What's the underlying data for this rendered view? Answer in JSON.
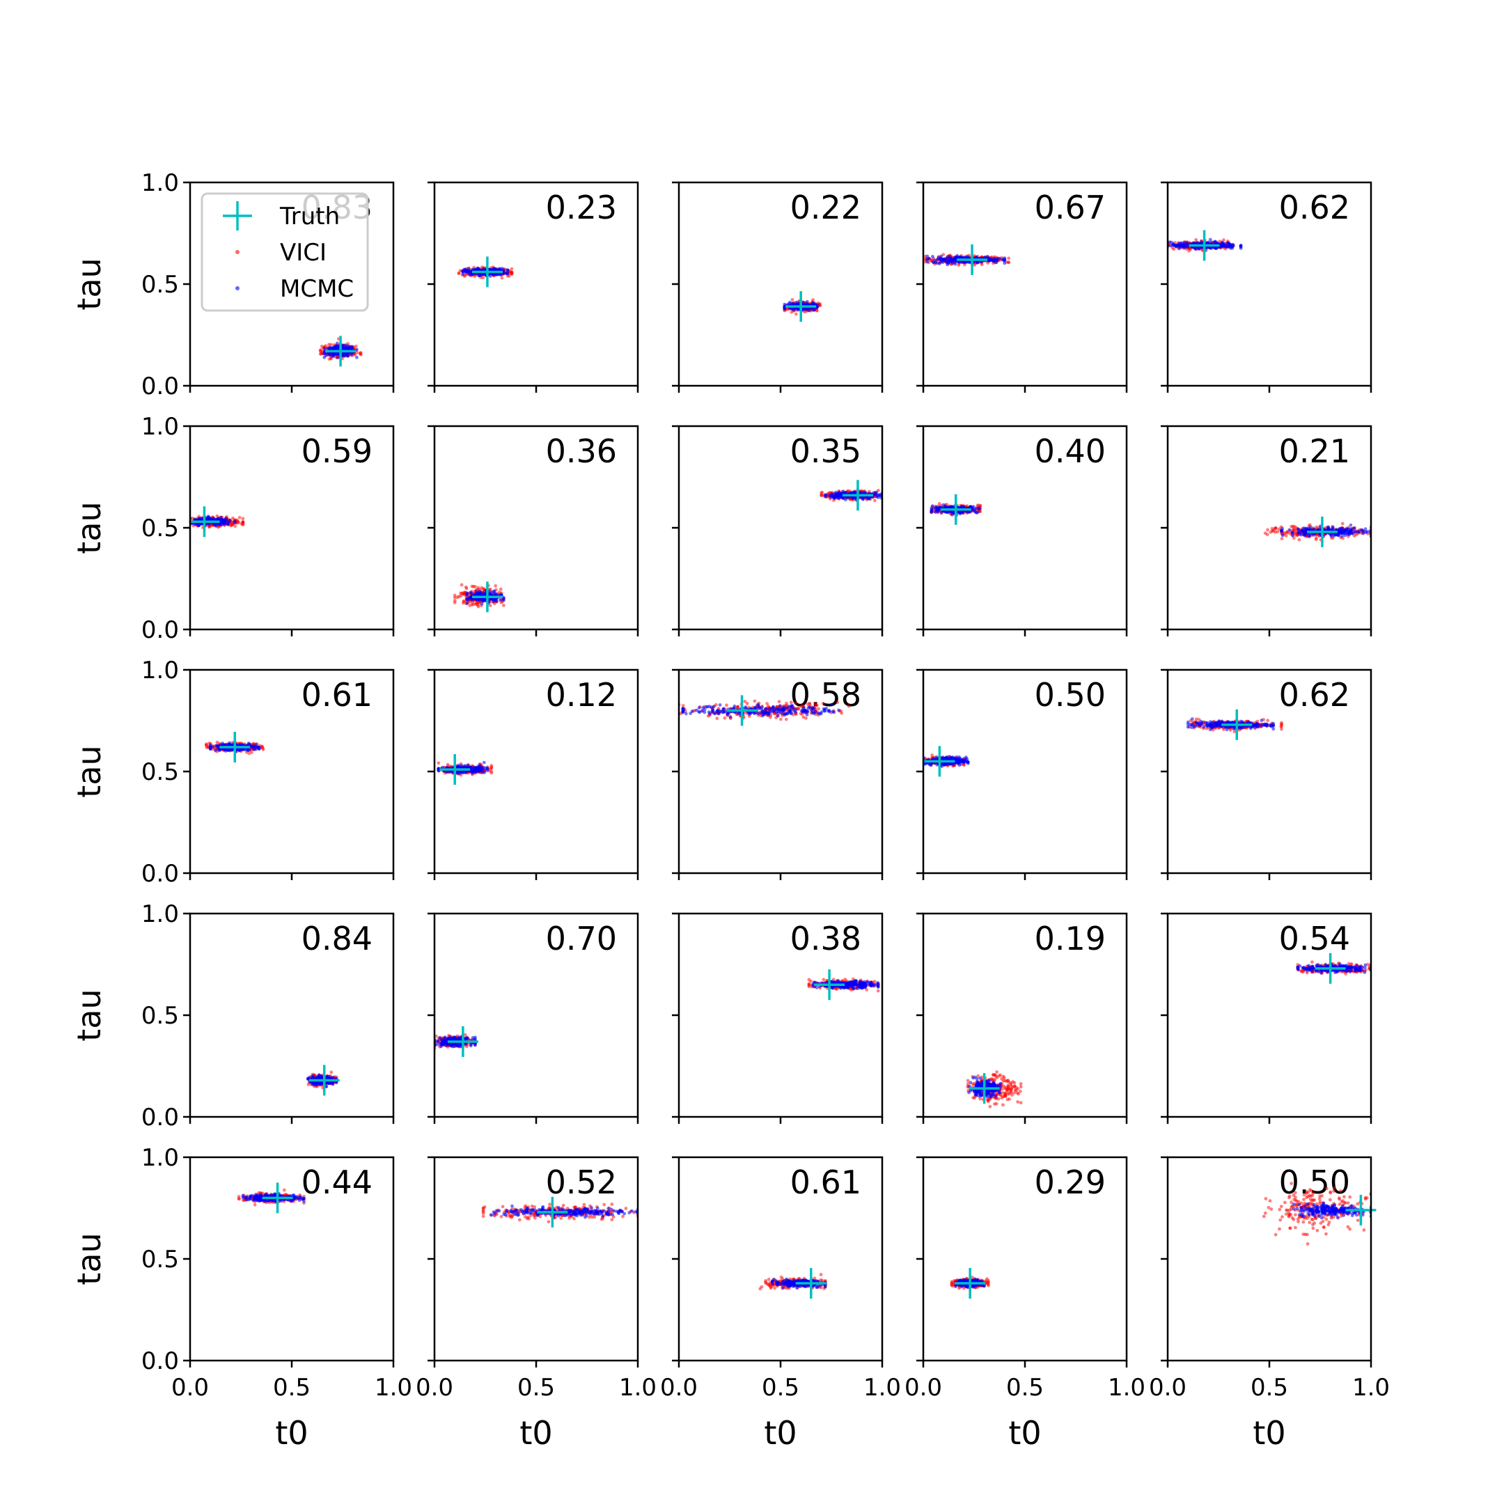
{
  "chart_data": {
    "type": "scatter",
    "layout": "5x5 grid of subplots, shared axes",
    "xlabel": "t0",
    "ylabel": "tau",
    "xlim": [
      0,
      1
    ],
    "ylim": [
      0,
      1
    ],
    "xticks": [
      "0.0",
      "0.5",
      "1.0"
    ],
    "yticks": [
      "0.0",
      "0.5",
      "1.0"
    ],
    "grid": false,
    "legend": {
      "placement": "upper-left of first subplot",
      "entries": [
        {
          "label": "Truth",
          "marker": "plus",
          "color": "#00bfbf"
        },
        {
          "label": "VICI",
          "marker": "dot",
          "color": "#ff0000"
        },
        {
          "label": "MCMC",
          "marker": "dot",
          "color": "#0000ff"
        }
      ]
    },
    "colors": {
      "truth": "#00bfbf",
      "vici": "#ff0000",
      "mcmc": "#0000ff"
    },
    "panels": [
      {
        "annotation": "0.83",
        "truth": [
          0.74,
          0.17
        ],
        "mcmc_t0": [
          0.66,
          0.82
        ],
        "mcmc_tau_spread": 0.012,
        "vici_t0": [
          0.64,
          0.84
        ],
        "vici_tau_spread": 0.016
      },
      {
        "annotation": "0.23",
        "truth": [
          0.26,
          0.56
        ],
        "mcmc_t0": [
          0.14,
          0.36
        ],
        "mcmc_tau_spread": 0.008,
        "vici_t0": [
          0.12,
          0.38
        ],
        "vici_tau_spread": 0.01
      },
      {
        "annotation": "0.22",
        "truth": [
          0.6,
          0.39
        ],
        "mcmc_t0": [
          0.52,
          0.68
        ],
        "mcmc_tau_spread": 0.008,
        "vici_t0": [
          0.52,
          0.7
        ],
        "vici_tau_spread": 0.01
      },
      {
        "annotation": "0.67",
        "truth": [
          0.24,
          0.62
        ],
        "mcmc_t0": [
          0.02,
          0.4
        ],
        "mcmc_tau_spread": 0.008,
        "vici_t0": [
          0.01,
          0.42
        ],
        "vici_tau_spread": 0.01
      },
      {
        "annotation": "0.62",
        "truth": [
          0.18,
          0.69
        ],
        "mcmc_t0": [
          0.0,
          0.36
        ],
        "mcmc_tau_spread": 0.008,
        "vici_t0": [
          0.0,
          0.32
        ],
        "vici_tau_spread": 0.01
      },
      {
        "annotation": "0.59",
        "truth": [
          0.07,
          0.53
        ],
        "mcmc_t0": [
          0.0,
          0.22
        ],
        "mcmc_tau_spread": 0.008,
        "vici_t0": [
          0.0,
          0.26
        ],
        "vici_tau_spread": 0.012
      },
      {
        "annotation": "0.36",
        "truth": [
          0.26,
          0.16
        ],
        "mcmc_t0": [
          0.16,
          0.34
        ],
        "mcmc_tau_spread": 0.012,
        "vici_t0": [
          0.1,
          0.34
        ],
        "vici_tau_spread": 0.02
      },
      {
        "annotation": "0.35",
        "truth": [
          0.88,
          0.66
        ],
        "mcmc_t0": [
          0.72,
          1.0
        ],
        "mcmc_tau_spread": 0.008,
        "vici_t0": [
          0.7,
          1.0
        ],
        "vici_tau_spread": 0.01
      },
      {
        "annotation": "0.40",
        "truth": [
          0.16,
          0.59
        ],
        "mcmc_t0": [
          0.04,
          0.28
        ],
        "mcmc_tau_spread": 0.008,
        "vici_t0": [
          0.04,
          0.28
        ],
        "vici_tau_spread": 0.01
      },
      {
        "annotation": "0.21",
        "truth": [
          0.76,
          0.48
        ],
        "mcmc_t0": [
          0.56,
          1.0
        ],
        "mcmc_tau_spread": 0.01,
        "vici_t0": [
          0.48,
          1.0
        ],
        "vici_tau_spread": 0.014
      },
      {
        "annotation": "0.61",
        "truth": [
          0.22,
          0.62
        ],
        "mcmc_t0": [
          0.1,
          0.34
        ],
        "mcmc_tau_spread": 0.008,
        "vici_t0": [
          0.08,
          0.36
        ],
        "vici_tau_spread": 0.01
      },
      {
        "annotation": "0.12",
        "truth": [
          0.1,
          0.51
        ],
        "mcmc_t0": [
          0.02,
          0.26
        ],
        "mcmc_tau_spread": 0.008,
        "vici_t0": [
          0.02,
          0.28
        ],
        "vici_tau_spread": 0.01
      },
      {
        "annotation": "0.58",
        "truth": [
          0.31,
          0.8
        ],
        "mcmc_t0": [
          0.02,
          0.8
        ],
        "mcmc_tau_spread": 0.012,
        "vici_t0": [
          0.0,
          0.84
        ],
        "vici_tau_spread": 0.018
      },
      {
        "annotation": "0.50",
        "truth": [
          0.08,
          0.55
        ],
        "mcmc_t0": [
          0.0,
          0.22
        ],
        "mcmc_tau_spread": 0.01,
        "vici_t0": [
          0.0,
          0.2
        ],
        "vici_tau_spread": 0.01
      },
      {
        "annotation": "0.62",
        "truth": [
          0.34,
          0.73
        ],
        "mcmc_t0": [
          0.1,
          0.52
        ],
        "mcmc_tau_spread": 0.008,
        "vici_t0": [
          0.08,
          0.56
        ],
        "vici_tau_spread": 0.01
      },
      {
        "annotation": "0.84",
        "truth": [
          0.66,
          0.18
        ],
        "mcmc_t0": [
          0.58,
          0.72
        ],
        "mcmc_tau_spread": 0.01,
        "vici_t0": [
          0.58,
          0.72
        ],
        "vici_tau_spread": 0.012
      },
      {
        "annotation": "0.70",
        "truth": [
          0.14,
          0.37
        ],
        "mcmc_t0": [
          0.0,
          0.2
        ],
        "mcmc_tau_spread": 0.01,
        "vici_t0": [
          0.0,
          0.2
        ],
        "vici_tau_spread": 0.012
      },
      {
        "annotation": "0.38",
        "truth": [
          0.74,
          0.65
        ],
        "mcmc_t0": [
          0.66,
          0.98
        ],
        "mcmc_tau_spread": 0.008,
        "vici_t0": [
          0.64,
          0.98
        ],
        "vici_tau_spread": 0.01
      },
      {
        "annotation": "0.19",
        "truth": [
          0.3,
          0.14
        ],
        "mcmc_t0": [
          0.22,
          0.38
        ],
        "mcmc_tau_spread": 0.018,
        "vici_t0": [
          0.22,
          0.48
        ],
        "vici_tau_spread": 0.035
      },
      {
        "annotation": "0.54",
        "truth": [
          0.8,
          0.73
        ],
        "mcmc_t0": [
          0.64,
          1.0
        ],
        "mcmc_tau_spread": 0.008,
        "vici_t0": [
          0.64,
          1.0
        ],
        "vici_tau_spread": 0.01
      },
      {
        "annotation": "0.44",
        "truth": [
          0.43,
          0.8
        ],
        "mcmc_t0": [
          0.26,
          0.56
        ],
        "mcmc_tau_spread": 0.008,
        "vici_t0": [
          0.24,
          0.56
        ],
        "vici_tau_spread": 0.01
      },
      {
        "annotation": "0.52",
        "truth": [
          0.58,
          0.73
        ],
        "mcmc_t0": [
          0.28,
          1.0
        ],
        "mcmc_tau_spread": 0.01,
        "vici_t0": [
          0.24,
          1.0
        ],
        "vici_tau_spread": 0.016
      },
      {
        "annotation": "0.61",
        "truth": [
          0.65,
          0.38
        ],
        "mcmc_t0": [
          0.46,
          0.72
        ],
        "mcmc_tau_spread": 0.008,
        "vici_t0": [
          0.4,
          0.72
        ],
        "vici_tau_spread": 0.01
      },
      {
        "annotation": "0.29",
        "truth": [
          0.23,
          0.38
        ],
        "mcmc_t0": [
          0.16,
          0.3
        ],
        "mcmc_tau_spread": 0.008,
        "vici_t0": [
          0.14,
          0.32
        ],
        "vici_tau_spread": 0.01
      },
      {
        "annotation": "0.50",
        "truth": [
          0.95,
          0.74
        ],
        "mcmc_t0": [
          0.62,
          1.0
        ],
        "mcmc_tau_spread": 0.014,
        "vici_t0": [
          0.46,
          1.0
        ],
        "vici_tau_spread": 0.05
      }
    ]
  }
}
